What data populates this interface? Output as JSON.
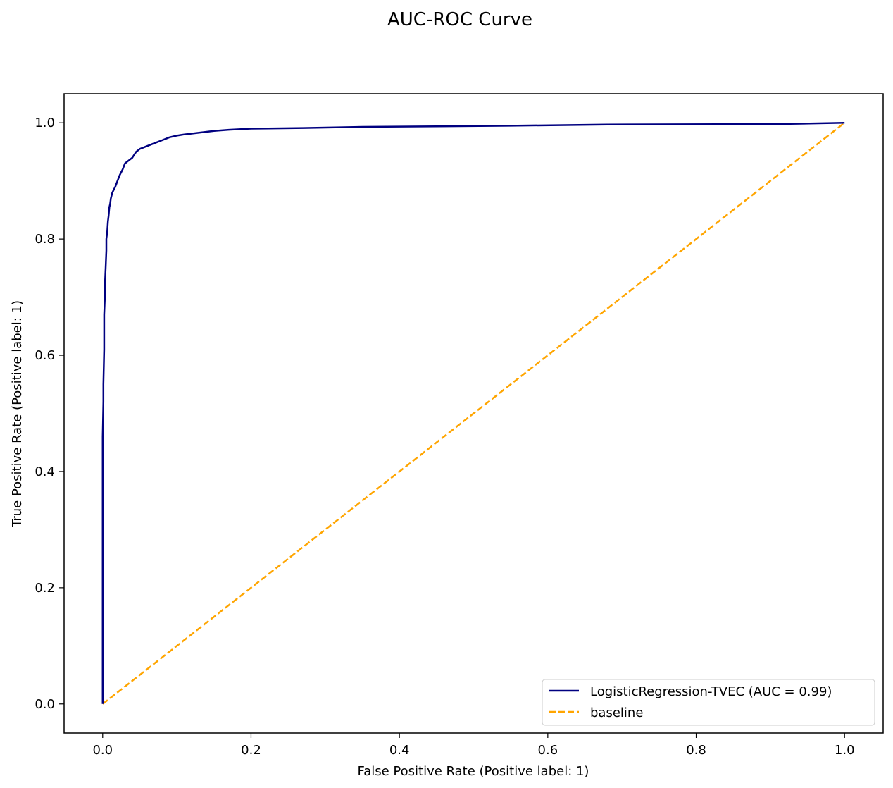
{
  "chart_data": {
    "type": "line",
    "title": "AUC-ROC Curve",
    "xlabel": "False Positive Rate (Positive label: 1)",
    "ylabel": "True Positive Rate (Positive label: 1)",
    "xlim": [
      -0.052,
      1.052
    ],
    "ylim": [
      -0.05,
      1.05
    ],
    "xticks": [
      0.0,
      0.2,
      0.4,
      0.6,
      0.8,
      1.0
    ],
    "xtick_labels": [
      "0.0",
      "0.2",
      "0.4",
      "0.6",
      "0.8",
      "1.0"
    ],
    "yticks": [
      0.0,
      0.2,
      0.4,
      0.6,
      0.8,
      1.0
    ],
    "ytick_labels": [
      "0.0",
      "0.2",
      "0.4",
      "0.6",
      "0.8",
      "1.0"
    ],
    "grid": false,
    "legend_position": "lower right",
    "series": [
      {
        "name": "LogisticRegression-TVEC (AUC = 0.99)",
        "color": "#000080",
        "style": "solid",
        "x": [
          0.0,
          0.0,
          0.001,
          0.001,
          0.002,
          0.002,
          0.003,
          0.003,
          0.004,
          0.005,
          0.005,
          0.006,
          0.007,
          0.008,
          0.009,
          0.01,
          0.011,
          0.013,
          0.015,
          0.017,
          0.02,
          0.023,
          0.027,
          0.03,
          0.035,
          0.04,
          0.045,
          0.05,
          0.06,
          0.07,
          0.08,
          0.09,
          0.1,
          0.11,
          0.13,
          0.15,
          0.17,
          0.2,
          0.27,
          0.35,
          0.55,
          0.68,
          0.92,
          1.0
        ],
        "y": [
          0.0,
          0.46,
          0.52,
          0.55,
          0.61,
          0.67,
          0.7,
          0.72,
          0.75,
          0.78,
          0.8,
          0.81,
          0.83,
          0.84,
          0.855,
          0.86,
          0.87,
          0.88,
          0.885,
          0.89,
          0.9,
          0.91,
          0.92,
          0.93,
          0.935,
          0.94,
          0.95,
          0.955,
          0.96,
          0.965,
          0.97,
          0.975,
          0.978,
          0.98,
          0.983,
          0.986,
          0.988,
          0.99,
          0.991,
          0.993,
          0.995,
          0.997,
          0.998,
          1.0
        ]
      },
      {
        "name": "baseline",
        "color": "#FFA500",
        "style": "dashed",
        "x": [
          0.0,
          1.0
        ],
        "y": [
          0.0,
          1.0
        ]
      }
    ]
  }
}
